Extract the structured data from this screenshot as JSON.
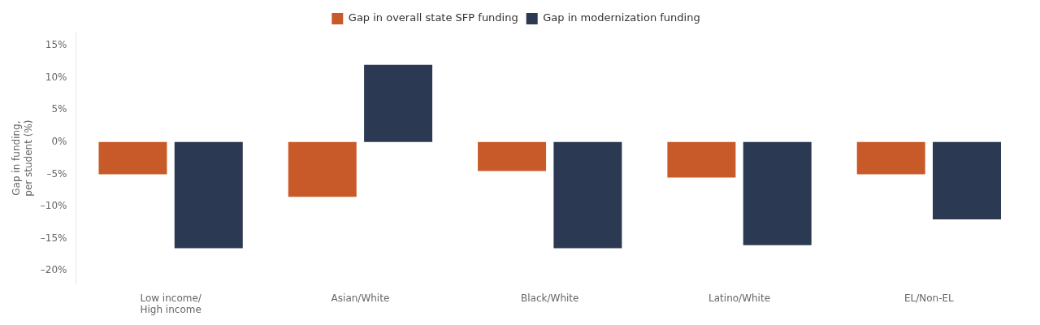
{
  "chart_data": {
    "type": "bar",
    "categories": [
      "Low income/\nHigh income",
      "Asian/White",
      "Black/White",
      "Latino/White",
      "EL/Non-EL"
    ],
    "series": [
      {
        "name": "Gap in overall state SFP funding",
        "color": "#C85A2A",
        "values": [
          -5.0,
          -8.5,
          -4.5,
          -5.5,
          -5.0
        ]
      },
      {
        "name": "Gap in modernization funding",
        "color": "#2B3A52",
        "values": [
          -16.5,
          12.0,
          -16.5,
          -16.0,
          -12.0
        ]
      }
    ],
    "ylabel": "Gap in funding,\nper student (%)",
    "ylim": [
      -22,
      17
    ],
    "yticks": [
      {
        "value": -20,
        "label": "–20%"
      },
      {
        "value": -15,
        "label": "–15%"
      },
      {
        "value": -10,
        "label": "–10%"
      },
      {
        "value": -5,
        "label": "–5%"
      },
      {
        "value": 0,
        "label": "0%"
      },
      {
        "value": 5,
        "label": "5%"
      },
      {
        "value": 10,
        "label": "10%"
      },
      {
        "value": 15,
        "label": "15%"
      }
    ],
    "grid": false,
    "legend": "top"
  }
}
